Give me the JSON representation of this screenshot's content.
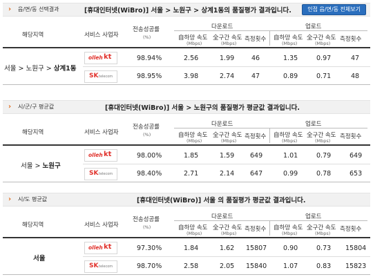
{
  "headers": {
    "region": "해당지역",
    "provider": "서비스 사업자",
    "success_rate": "전송성공률",
    "success_unit": "(%)",
    "download": "다운로드",
    "upload": "업로드",
    "self_speed": "自하망 속도",
    "whole_speed": "全구간 속도",
    "speed_unit": "(Mbps)",
    "count": "측정횟수"
  },
  "sections": [
    {
      "bar_title": "읍/면/동 선택결과",
      "headline": "[휴대인터넷(WiBro)] 서울 > 노원구 > 상계1동의 품질평가 결과입니다.",
      "button": "인접 읍/면/동 전체보기",
      "region_plain": "서울 > 노원구 > ",
      "region_bold": "상계1동",
      "rows": [
        {
          "provider": "olleh kt",
          "rate": "98.94%",
          "dl_self": "2.56",
          "dl_whole": "1.99",
          "dl_count": "46",
          "ul_self": "1.35",
          "ul_whole": "0.97",
          "ul_count": "47"
        },
        {
          "provider": "SK telecom",
          "rate": "98.95%",
          "dl_self": "3.98",
          "dl_whole": "2.74",
          "dl_count": "47",
          "ul_self": "0.89",
          "ul_whole": "0.71",
          "ul_count": "48"
        }
      ]
    },
    {
      "bar_title": "시/군/구 평균값",
      "headline": "[휴대인터넷(WiBro)] 서울 > 노원구의 품질평가 평균값 결과입니다.",
      "region_plain": "서울 > ",
      "region_bold": "노원구",
      "rows": [
        {
          "provider": "olleh kt",
          "rate": "98.00%",
          "dl_self": "1.85",
          "dl_whole": "1.59",
          "dl_count": "649",
          "ul_self": "1.01",
          "ul_whole": "0.79",
          "ul_count": "649"
        },
        {
          "provider": "SK telecom",
          "rate": "98.40%",
          "dl_self": "2.71",
          "dl_whole": "2.14",
          "dl_count": "647",
          "ul_self": "0.99",
          "ul_whole": "0.78",
          "ul_count": "653"
        }
      ]
    },
    {
      "bar_title": "시/도 평균값",
      "headline": "[휴대인터넷(WiBro)] 서울 의 품질평가 평균값 결과입니다.",
      "region_plain": "",
      "region_bold": "서울",
      "rows": [
        {
          "provider": "olleh kt",
          "rate": "97.30%",
          "dl_self": "1.84",
          "dl_whole": "1.62",
          "dl_count": "15807",
          "ul_self": "0.90",
          "ul_whole": "0.73",
          "ul_count": "15804"
        },
        {
          "provider": "SK telecom",
          "rate": "98.70%",
          "dl_self": "2.58",
          "dl_whole": "2.05",
          "dl_count": "15840",
          "ul_self": "1.07",
          "ul_whole": "0.83",
          "ul_count": "15823"
        }
      ]
    }
  ],
  "logos": {
    "kt_a": "olleh",
    "kt_b": "kt",
    "sk_a": "SK",
    "sk_b": "telecom"
  },
  "colors": {
    "accent": "#e06a1a",
    "button": "#2a6ebd",
    "kt_red": "#e0302a"
  }
}
